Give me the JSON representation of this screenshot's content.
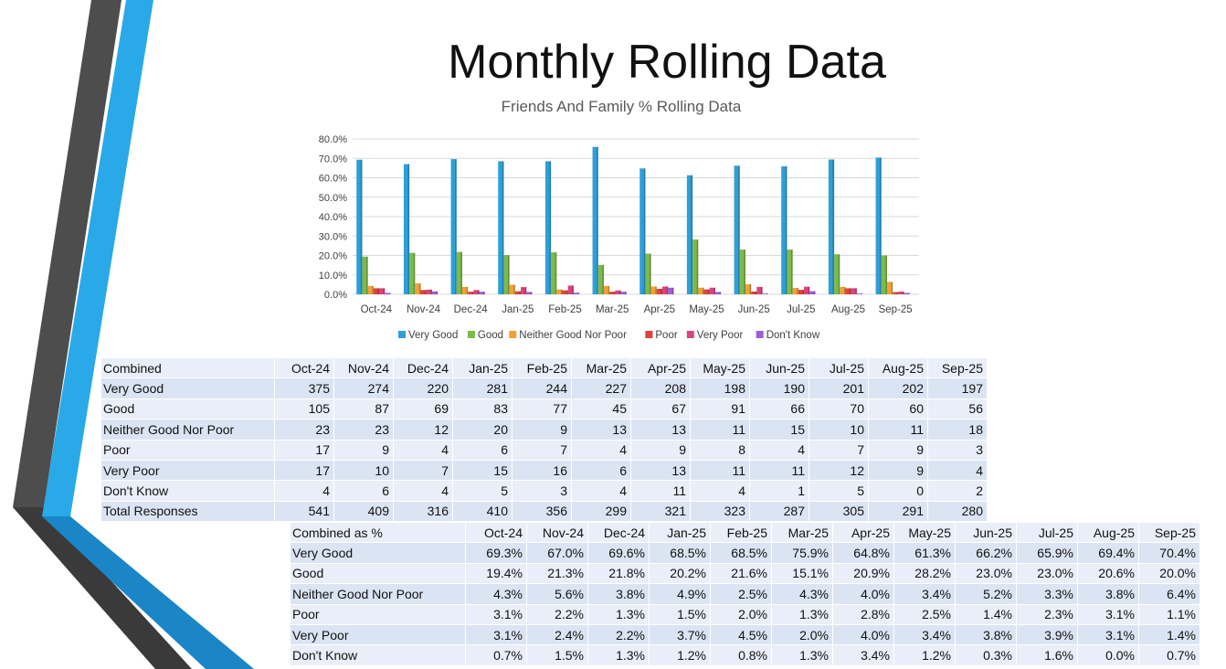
{
  "title": "Monthly Rolling Data",
  "months": [
    "Oct-24",
    "Nov-24",
    "Dec-24",
    "Jan-25",
    "Feb-25",
    "Mar-25",
    "Apr-25",
    "May-25",
    "Jun-25",
    "Jul-25",
    "Aug-25",
    "Sep-25"
  ],
  "counts_table": {
    "header": "Combined",
    "rows": [
      {
        "label": "Very Good",
        "values": [
          "375",
          "274",
          "220",
          "281",
          "244",
          "227",
          "208",
          "198",
          "190",
          "201",
          "202",
          "197"
        ]
      },
      {
        "label": "Good",
        "values": [
          "105",
          "87",
          "69",
          "83",
          "77",
          "45",
          "67",
          "91",
          "66",
          "70",
          "60",
          "56"
        ]
      },
      {
        "label": "Neither Good Nor Poor",
        "values": [
          "23",
          "23",
          "12",
          "20",
          "9",
          "13",
          "13",
          "11",
          "15",
          "10",
          "11",
          "18"
        ]
      },
      {
        "label": "Poor",
        "values": [
          "17",
          "9",
          "4",
          "6",
          "7",
          "4",
          "9",
          "8",
          "4",
          "7",
          "9",
          "3"
        ]
      },
      {
        "label": "Very Poor",
        "values": [
          "17",
          "10",
          "7",
          "15",
          "16",
          "6",
          "13",
          "11",
          "11",
          "12",
          "9",
          "4"
        ]
      },
      {
        "label": "Don't Know",
        "values": [
          "4",
          "6",
          "4",
          "5",
          "3",
          "4",
          "11",
          "4",
          "1",
          "5",
          "0",
          "2"
        ]
      },
      {
        "label": "Total Responses",
        "values": [
          "541",
          "409",
          "316",
          "410",
          "356",
          "299",
          "321",
          "323",
          "287",
          "305",
          "291",
          "280"
        ]
      }
    ]
  },
  "pct_table": {
    "header": "Combined as %",
    "rows": [
      {
        "label": "Very Good",
        "values": [
          "69.3%",
          "67.0%",
          "69.6%",
          "68.5%",
          "68.5%",
          "75.9%",
          "64.8%",
          "61.3%",
          "66.2%",
          "65.9%",
          "69.4%",
          "70.4%"
        ]
      },
      {
        "label": "Good",
        "values": [
          "19.4%",
          "21.3%",
          "21.8%",
          "20.2%",
          "21.6%",
          "15.1%",
          "20.9%",
          "28.2%",
          "23.0%",
          "23.0%",
          "20.6%",
          "20.0%"
        ]
      },
      {
        "label": "Neither Good Nor Poor",
        "values": [
          "4.3%",
          "5.6%",
          "3.8%",
          "4.9%",
          "2.5%",
          "4.3%",
          "4.0%",
          "3.4%",
          "5.2%",
          "3.3%",
          "3.8%",
          "6.4%"
        ]
      },
      {
        "label": "Poor",
        "values": [
          "3.1%",
          "2.2%",
          "1.3%",
          "1.5%",
          "2.0%",
          "1.3%",
          "2.8%",
          "2.5%",
          "1.4%",
          "2.3%",
          "3.1%",
          "1.1%"
        ]
      },
      {
        "label": "Very Poor",
        "values": [
          "3.1%",
          "2.4%",
          "2.2%",
          "3.7%",
          "4.5%",
          "2.0%",
          "4.0%",
          "3.4%",
          "3.8%",
          "3.9%",
          "3.1%",
          "1.4%"
        ]
      },
      {
        "label": "Don't Know",
        "values": [
          "0.7%",
          "1.5%",
          "1.3%",
          "1.2%",
          "0.8%",
          "1.3%",
          "3.4%",
          "1.2%",
          "0.3%",
          "1.6%",
          "0.0%",
          "0.7%"
        ]
      }
    ]
  },
  "chart_data": {
    "type": "bar",
    "title": "Friends And Family % Rolling Data",
    "xlabel": "",
    "ylabel": "",
    "ylim": [
      0,
      80
    ],
    "yticks": [
      "0.0%",
      "10.0%",
      "20.0%",
      "30.0%",
      "40.0%",
      "50.0%",
      "60.0%",
      "70.0%",
      "80.0%"
    ],
    "legend_position": "bottom",
    "categories": [
      "Oct-24",
      "Nov-24",
      "Dec-24",
      "Jan-25",
      "Feb-25",
      "Mar-25",
      "Apr-25",
      "May-25",
      "Jun-25",
      "Jul-25",
      "Aug-25",
      "Sep-25"
    ],
    "series": [
      {
        "name": "Very Good",
        "color": "#2e9fd8",
        "values": [
          69.3,
          67.0,
          69.6,
          68.5,
          68.5,
          75.9,
          64.8,
          61.3,
          66.2,
          65.9,
          69.4,
          70.4
        ]
      },
      {
        "name": "Good",
        "color": "#7dba4a",
        "values": [
          19.4,
          21.3,
          21.8,
          20.2,
          21.6,
          15.1,
          20.9,
          28.2,
          23.0,
          23.0,
          20.6,
          20.0
        ]
      },
      {
        "name": "Neither Good Nor Poor",
        "color": "#f0a13a",
        "values": [
          4.3,
          5.6,
          3.8,
          4.9,
          2.5,
          4.3,
          4.0,
          3.4,
          5.2,
          3.3,
          3.8,
          6.4
        ]
      },
      {
        "name": "Poor",
        "color": "#e0413a",
        "values": [
          3.1,
          2.2,
          1.3,
          1.5,
          2.0,
          1.3,
          2.8,
          2.5,
          1.4,
          2.3,
          3.1,
          1.1
        ]
      },
      {
        "name": "Very Poor",
        "color": "#d9437e",
        "values": [
          3.1,
          2.4,
          2.2,
          3.7,
          4.5,
          2.0,
          4.0,
          3.4,
          3.8,
          3.9,
          3.1,
          1.4
        ]
      },
      {
        "name": "Don't Know",
        "color": "#9b5fd1",
        "values": [
          0.7,
          1.5,
          1.3,
          1.2,
          0.8,
          1.3,
          3.4,
          1.2,
          0.3,
          1.6,
          0.0,
          0.7
        ]
      }
    ]
  }
}
